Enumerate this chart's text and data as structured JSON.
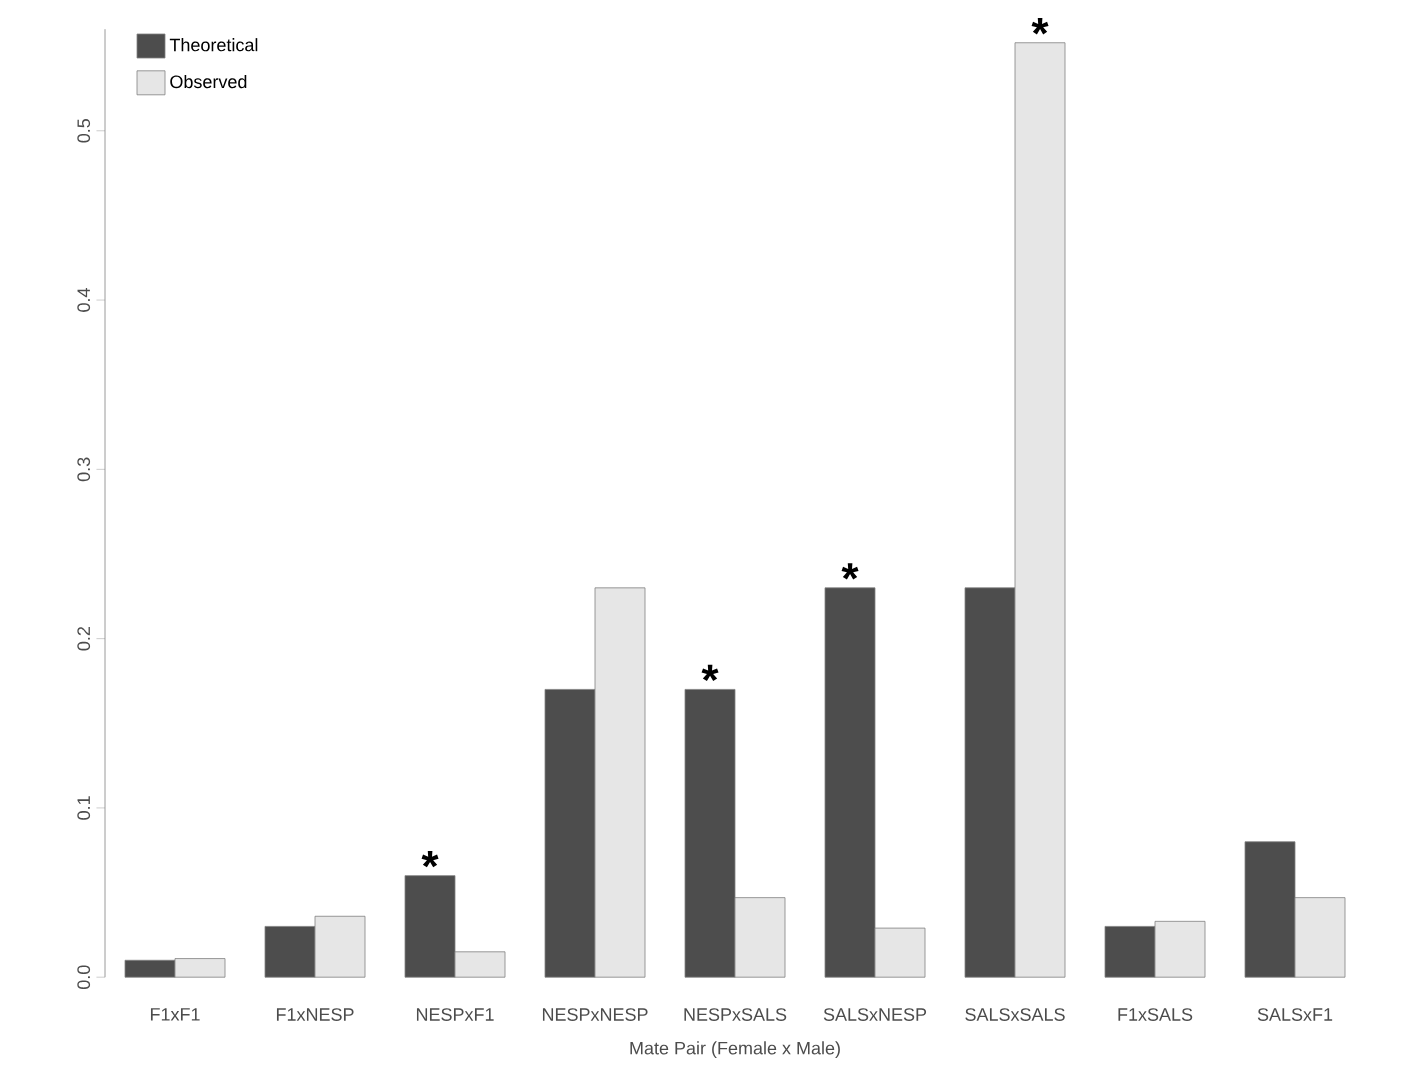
{
  "chart_data": {
    "type": "bar",
    "xlabel": "Mate Pair (Female x Male)",
    "categories": [
      "F1xF1",
      "F1xNESP",
      "NESPxF1",
      "NESPxNESP",
      "NESPxSALS",
      "SALSxNESP",
      "SALSxSALS",
      "F1xSALS",
      "SALSxF1"
    ],
    "series": [
      {
        "name": "Theoretical",
        "color": "#4d4d4d",
        "values": [
          0.01,
          0.03,
          0.06,
          0.17,
          0.17,
          0.23,
          0.23,
          0.03,
          0.08
        ]
      },
      {
        "name": "Observed",
        "color": "#e6e6e6",
        "values": [
          0.011,
          0.036,
          0.015,
          0.23,
          0.047,
          0.029,
          0.552,
          0.033,
          0.047
        ]
      }
    ],
    "ylim": [
      0,
      0.56
    ],
    "yticks": [
      {
        "value": 0,
        "label": "0.0"
      },
      0.1,
      0.2,
      0.3,
      0.4,
      0.5
    ],
    "legend": "top left",
    "annotations": [
      {
        "text": "*",
        "x": "NESPxF1",
        "y": 0.06
      },
      {
        "text": "*",
        "x": "NESPxSALS",
        "y": 0.17
      },
      {
        "text": "*",
        "x": "SALSxNESP",
        "y": 0.23
      },
      {
        "text": "*",
        "x": "SALSxSALS",
        "y": 0.552
      }
    ]
  }
}
